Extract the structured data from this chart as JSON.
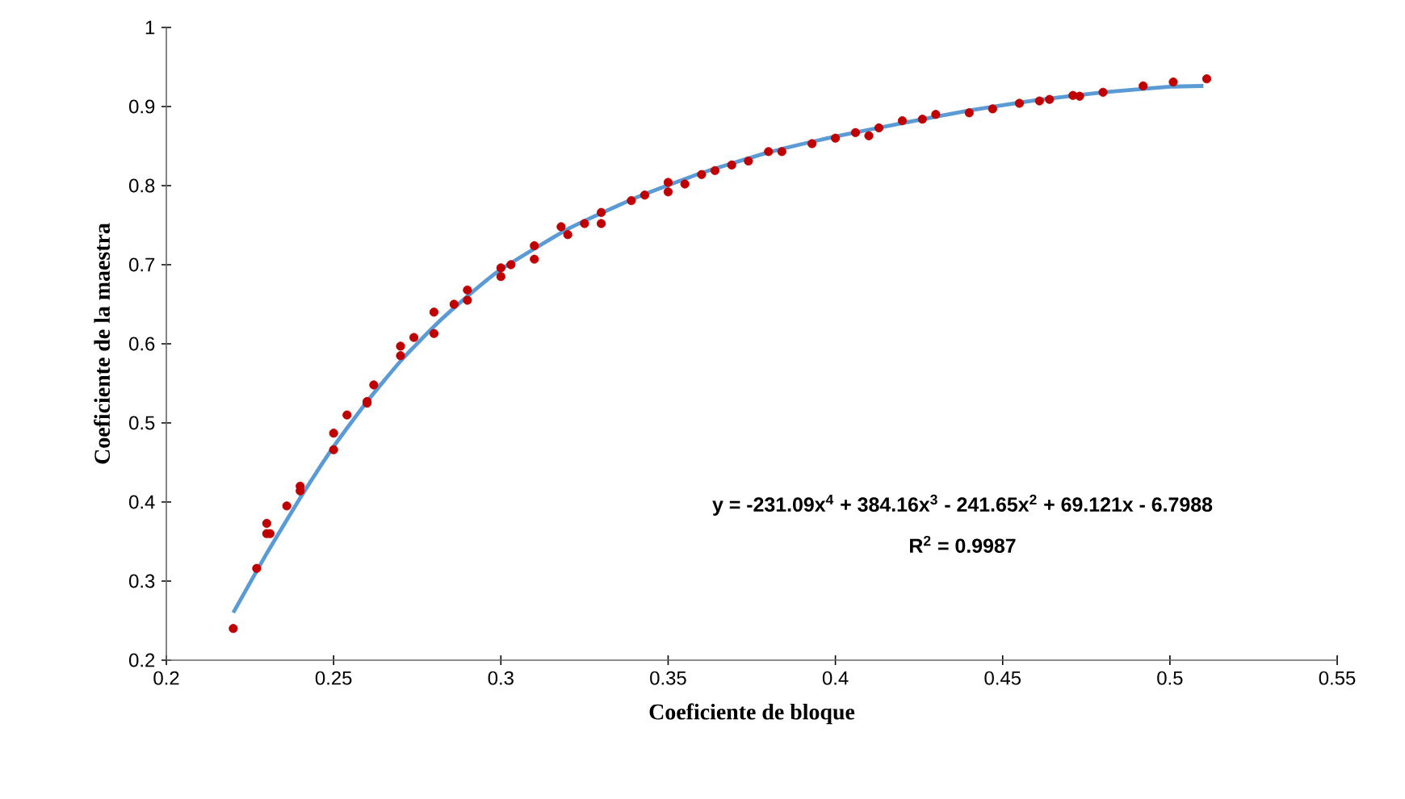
{
  "chart_data": {
    "type": "scatter",
    "xlabel": "Coeficiente de bloque",
    "ylabel": "Coeficiente de la maestra",
    "xlim": [
      0.2,
      0.55
    ],
    "xticks": [
      0.2,
      0.25,
      0.3,
      0.35,
      0.4,
      0.45,
      0.5,
      0.55
    ],
    "ylim": [
      0.2,
      1
    ],
    "yticks": [
      0.2,
      0.3,
      0.4,
      0.5,
      0.6,
      0.7,
      0.8,
      0.9,
      1
    ],
    "grid": false,
    "annotations": [
      "y = -231.09x$^{4}$ + 384.16x$^{3}$ - 241.65x$^{2}$ + 69.121x - 6.7988",
      "R$^{2}$ = 0.9987"
    ],
    "series": [
      {
        "color": "#c00000",
        "marker": "circle",
        "x": [
          0.22,
          0.227,
          0.23,
          0.23,
          0.231,
          0.236,
          0.24,
          0.24,
          0.25,
          0.25,
          0.254,
          0.26,
          0.26,
          0.262,
          0.27,
          0.27,
          0.274,
          0.28,
          0.28,
          0.286,
          0.29,
          0.29,
          0.3,
          0.3,
          0.303,
          0.31,
          0.31,
          0.318,
          0.32,
          0.325,
          0.33,
          0.33,
          0.339,
          0.343,
          0.35,
          0.35,
          0.355,
          0.36,
          0.364,
          0.369,
          0.374,
          0.38,
          0.384,
          0.393,
          0.4,
          0.406,
          0.41,
          0.413,
          0.42,
          0.426,
          0.43,
          0.44,
          0.447,
          0.455,
          0.461,
          0.464,
          0.471,
          0.473,
          0.48,
          0.492,
          0.501,
          0.511
        ],
        "values": [
          0.24,
          0.316,
          0.373,
          0.36,
          0.36,
          0.395,
          0.414,
          0.42,
          0.487,
          0.466,
          0.51,
          0.527,
          0.525,
          0.548,
          0.597,
          0.585,
          0.608,
          0.64,
          0.613,
          0.65,
          0.668,
          0.655,
          0.696,
          0.685,
          0.7,
          0.724,
          0.707,
          0.748,
          0.738,
          0.752,
          0.766,
          0.752,
          0.781,
          0.788,
          0.804,
          0.792,
          0.802,
          0.814,
          0.819,
          0.826,
          0.831,
          0.843,
          0.843,
          0.853,
          0.86,
          0.867,
          0.863,
          0.873,
          0.882,
          0.884,
          0.89,
          0.892,
          0.897,
          0.904,
          0.907,
          0.909,
          0.914,
          0.913,
          0.918,
          0.926,
          0.931,
          0.935
        ]
      },
      {
        "type": "line",
        "color": "#5b9bd5",
        "marker": "none",
        "line_style": "solid",
        "x": [
          0.22,
          0.23,
          0.24,
          0.25,
          0.26,
          0.27,
          0.28,
          0.29,
          0.3,
          0.32,
          0.34,
          0.36,
          0.38,
          0.4,
          0.42,
          0.44,
          0.46,
          0.48,
          0.5,
          0.51
        ],
        "values": [
          0.26,
          0.335,
          0.405,
          0.47,
          0.527,
          0.578,
          0.622,
          0.66,
          0.694,
          0.745,
          0.784,
          0.816,
          0.842,
          0.862,
          0.879,
          0.895,
          0.908,
          0.918,
          0.925,
          0.926
        ]
      }
    ]
  }
}
